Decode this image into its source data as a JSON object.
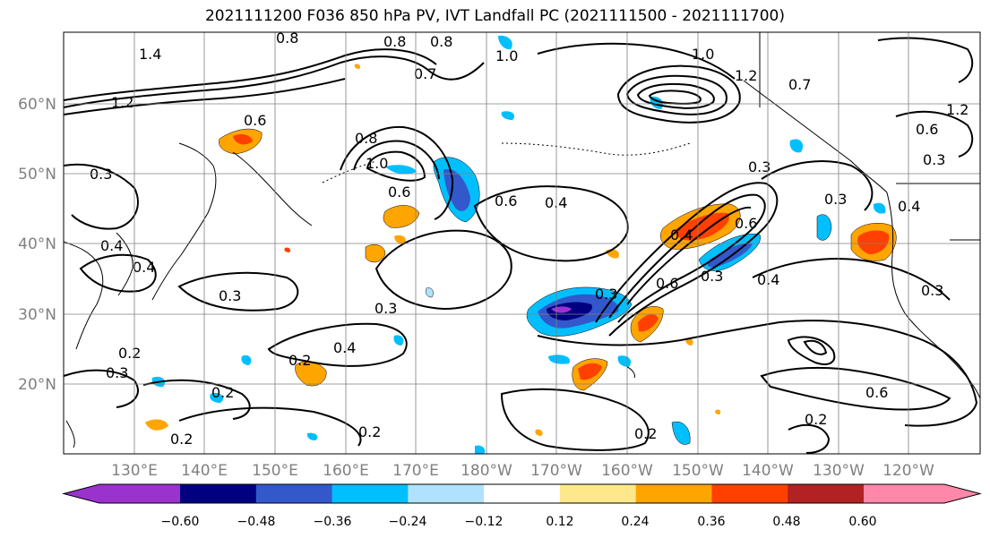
{
  "title": "2021111200 F036 850 hPa PV, IVT Landfall PC (2021111500 - 2021111700)",
  "map": {
    "lat_labels": [
      "60°N",
      "50°N",
      "40°N",
      "30°N",
      "20°N"
    ],
    "lon_labels": [
      "130°E",
      "140°E",
      "150°E",
      "160°E",
      "170°E",
      "180°W",
      "170°W",
      "160°W",
      "150°W",
      "140°W",
      "130°W",
      "120°W"
    ],
    "contour_labels": [
      "1.4",
      "0.8",
      "0.8",
      "0.8",
      "1.0",
      "0.7",
      "0.6",
      "1.0",
      "1.2",
      "0.7",
      "1.2",
      "1.2",
      "0.6",
      "0.3",
      "0.3",
      "0.8",
      "1.0",
      "0.6",
      "0.6",
      "0.4",
      "0.3",
      "0.3",
      "0.4",
      "0.4",
      "0.4",
      "0.6",
      "0.6",
      "0.3",
      "0.3",
      "0.4",
      "0.4",
      "0.3",
      "0.3",
      "0.3",
      "0.4",
      "0.2",
      "0.2",
      "0.3",
      "0.2",
      "0.2",
      "0.2",
      "0.2",
      "0.6",
      "0.2"
    ]
  },
  "colorbar": {
    "ticks": [
      "−0.60",
      "−0.48",
      "−0.36",
      "−0.24",
      "−0.12",
      "0.12",
      "0.24",
      "0.36",
      "0.48",
      "0.60"
    ],
    "colors": [
      "#9a32cd",
      "#000080",
      "#3358cc",
      "#00bfff",
      "#b0e2ff",
      "#ffffff",
      "#fde98b",
      "#ffa500",
      "#ff4000",
      "#b22222",
      "#ff88aa"
    ]
  }
}
